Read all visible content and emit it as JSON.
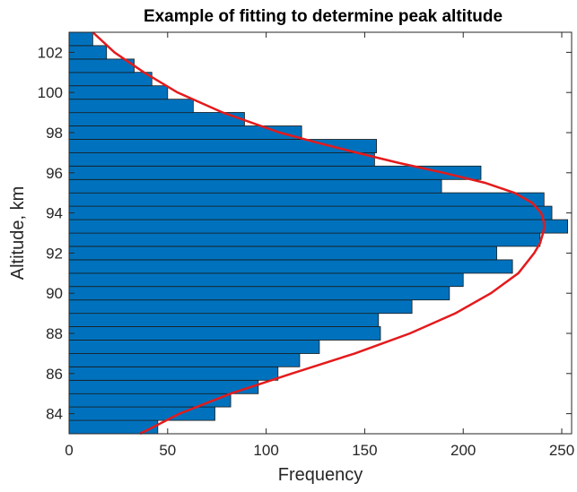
{
  "chart_data": {
    "type": "bar",
    "orientation": "horizontal",
    "title": "Example of fitting to determine peak altitude",
    "xlabel": "Frequency",
    "ylabel": "Altitude, km",
    "xlim": [
      0,
      255
    ],
    "ylim": [
      83,
      103
    ],
    "xticks": [
      0,
      50,
      100,
      150,
      200,
      250
    ],
    "yticks": [
      84,
      86,
      88,
      90,
      92,
      94,
      96,
      98,
      100,
      102
    ],
    "grid": false,
    "legend": "none",
    "bar_color": "#0072BD",
    "curve_color": "#E41A1C",
    "bins": {
      "centers": [
        83.33,
        84.0,
        84.67,
        85.33,
        86.0,
        86.67,
        87.33,
        88.0,
        88.67,
        89.33,
        90.0,
        90.67,
        91.33,
        92.0,
        92.67,
        93.33,
        94.0,
        94.67,
        95.33,
        96.0,
        96.67,
        97.33,
        98.0,
        98.67,
        99.33,
        100.0,
        100.67,
        101.33,
        102.0,
        102.67
      ],
      "counts": [
        45,
        74,
        82,
        96,
        106,
        117,
        127,
        158,
        157,
        174,
        193,
        200,
        225,
        217,
        239,
        253,
        245,
        241,
        189,
        209,
        155,
        156,
        118,
        89,
        63,
        50,
        42,
        33,
        19,
        12
      ]
    },
    "fit_curve": {
      "altitude": [
        83.0,
        84.0,
        85.0,
        86.0,
        87.0,
        88.0,
        89.0,
        90.0,
        91.0,
        92.0,
        92.5,
        93.0,
        93.3,
        93.6,
        94.0,
        94.5,
        95.0,
        95.5,
        96.0,
        96.5,
        97.0,
        97.5,
        98.0,
        99.0,
        100.0,
        101.0,
        102.0,
        103.0
      ],
      "frequency": [
        36,
        56,
        82,
        113,
        145,
        173,
        196,
        214,
        228,
        236,
        239,
        240.5,
        241,
        240.8,
        239.5,
        235,
        226,
        211,
        190,
        167,
        146,
        126,
        107,
        78,
        55,
        38,
        23,
        12
      ]
    }
  }
}
